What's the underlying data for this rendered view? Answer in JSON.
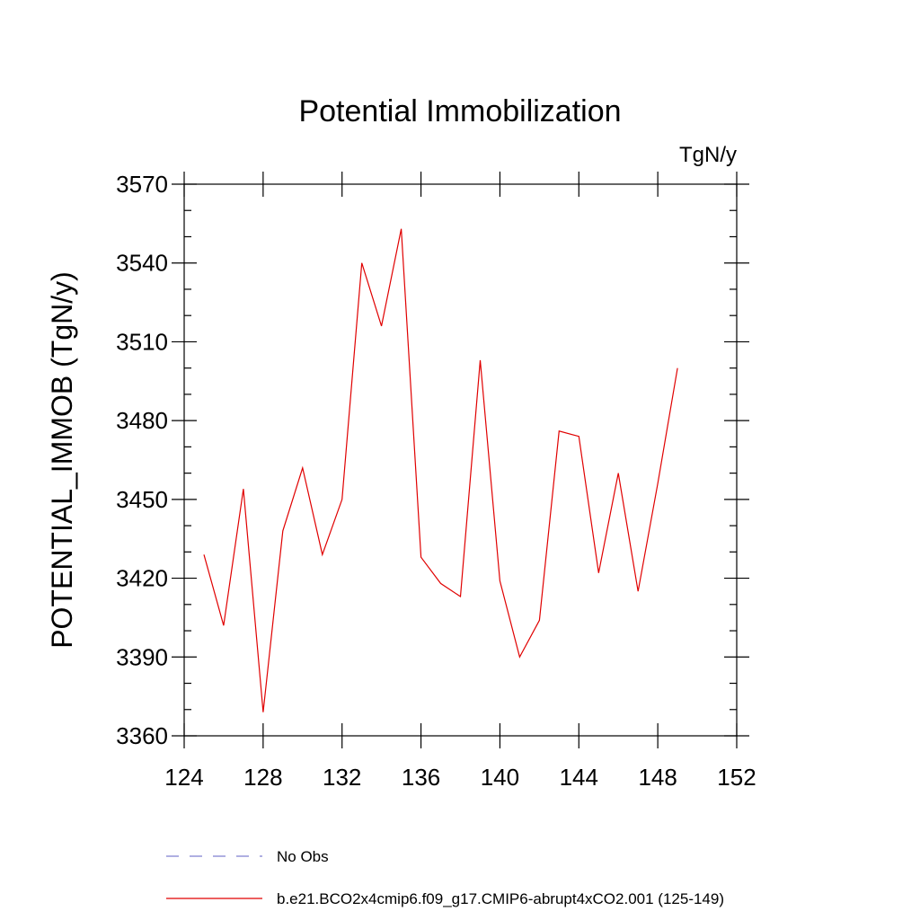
{
  "chart_data": {
    "type": "line",
    "title": "Potential Immobilization",
    "units": "TgN/y",
    "xlabel": "",
    "ylabel": "POTENTIAL_IMMOB  (TgN/y)",
    "xlim": [
      124,
      152
    ],
    "ylim": [
      3360,
      3570
    ],
    "xticks": [
      124,
      128,
      132,
      136,
      140,
      144,
      148,
      152
    ],
    "yticks": [
      3360,
      3390,
      3420,
      3450,
      3480,
      3510,
      3540,
      3570
    ],
    "series": [
      {
        "name": "b.e21.BCO2x4cmip6.f09_g17.CMIP6-abrupt4xCO2.001 (125-149)",
        "color": "#e00000",
        "x": [
          125,
          126,
          127,
          128,
          129,
          130,
          131,
          132,
          133,
          134,
          135,
          136,
          137,
          138,
          139,
          140,
          141,
          142,
          143,
          144,
          145,
          146,
          147,
          148,
          149
        ],
        "values": [
          3429,
          3402,
          3454,
          3369,
          3438,
          3462,
          3429,
          3450,
          3540,
          3516,
          3553,
          3428,
          3418,
          3413,
          3503,
          3419,
          3390,
          3404,
          3476,
          3474,
          3422,
          3460,
          3415,
          3456,
          3500
        ]
      }
    ],
    "legend": [
      {
        "label": "No Obs",
        "style": "dashed",
        "color": "#7f7fd0"
      },
      {
        "label": "b.e21.BCO2x4cmip6.f09_g17.CMIP6-abrupt4xCO2.001 (125-149)",
        "style": "solid",
        "color": "#e00000"
      }
    ]
  }
}
